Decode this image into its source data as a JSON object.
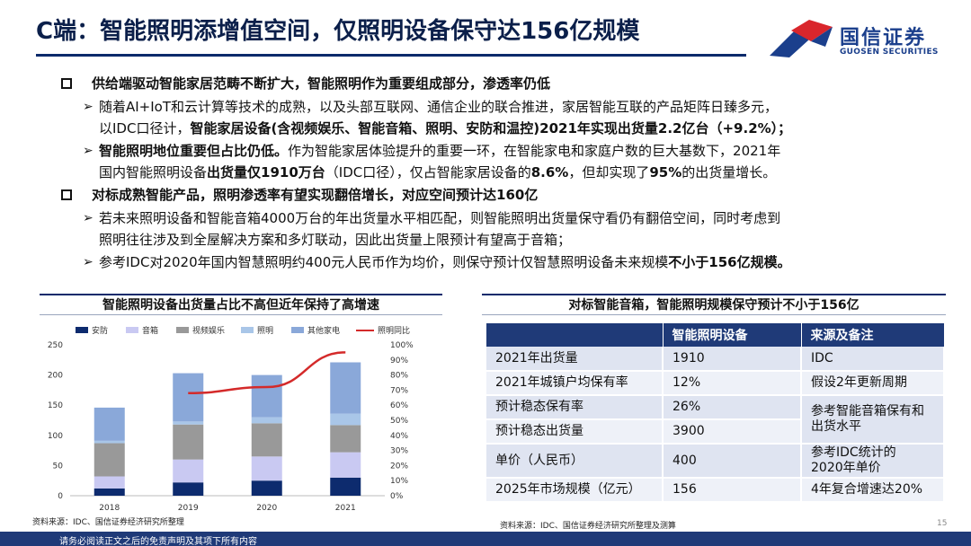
{
  "title": "C端：智能照明添增值空间，仅照明设备保守达156亿规模",
  "logo": {
    "cn": "国信证券",
    "en": "GUOSEN SECURITIES"
  },
  "sections": [
    {
      "heading": "供给端驱动智能家居范畴不断扩大，智能照明作为重要组成部分，渗透率仍低",
      "points": [
        {
          "line1": "随着AI+IoT和云计算等技术的成熟，以及头部互联网、通信企业的联合推进，家居智能互联的产品矩阵日臻多元，",
          "line2_a": "以IDC口径计，",
          "line2_b": "智能家居设备(含视频娱乐、智能音箱、照明、安防和温控)2021年实现出货量2.2亿台（+9.2%）；"
        },
        {
          "line1_b": "智能照明地位重要但占比仍低。",
          "line1_a": "作为智能家居体验提升的重要一环，在智能家电和家庭户数的巨大基数下，2021年",
          "line2_a": "国内智能照明设备",
          "line2_b": "出货量仅1910万台",
          "line2_c": "（IDC口径），仅占智能家居设备的",
          "line2_d": "8.6%",
          "line2_e": "，但却实现了",
          "line2_f": "95%",
          "line2_g": "的出货量增长。"
        }
      ]
    },
    {
      "heading": "对标成熟智能产品，照明渗透率有望实现翻倍增长，对应空间预计达160亿",
      "points": [
        {
          "line1": "若未来照明设备和智能音箱4000万台的年出货量水平相匹配，则智能照明出货量保守看仍有翻倍空间，同时考虑到",
          "line2": "照明往往涉及到全屋解决方案和多灯联动，因此出货量上限预计有望高于音箱；"
        },
        {
          "line1_a": "参考IDC对2020年国内智慧照明约400元人民币作为均价，则保守预计仅智慧照明设备未来规模",
          "line1_b": "不小于156亿规模。"
        }
      ]
    }
  ],
  "chart_title": "智能照明设备出货量占比不高但近年保持了高增速",
  "table_title": "对标智能音箱，智能照明规模保守预计不小于156亿",
  "chart_data": {
    "type": "bar",
    "stacked": true,
    "categories": [
      "2018",
      "2019",
      "2020",
      "2021"
    ],
    "series": [
      {
        "name": "安防",
        "color": "#0d2b6e",
        "values": [
          12,
          22,
          25,
          30
        ]
      },
      {
        "name": "音箱",
        "color": "#c9c9f2",
        "values": [
          20,
          38,
          40,
          42
        ]
      },
      {
        "name": "视频娱乐",
        "color": "#999999",
        "values": [
          55,
          58,
          55,
          45
        ]
      },
      {
        "name": "照明",
        "color": "#a9c6e8",
        "values": [
          4,
          5,
          10,
          19
        ]
      },
      {
        "name": "其他家电",
        "color": "#8aa8d9",
        "values": [
          55,
          80,
          70,
          85
        ]
      }
    ],
    "line_series": {
      "name": "照明同比",
      "color": "#d42a2a",
      "categories": [
        "2019",
        "2020",
        "2021"
      ],
      "values": [
        0.68,
        0.72,
        0.95
      ]
    },
    "ylim": [
      0,
      250
    ],
    "yticks": [
      "0",
      "50",
      "100",
      "150",
      "200",
      "250"
    ],
    "y2lim": [
      0,
      1
    ],
    "y2ticks": [
      "0%",
      "10%",
      "20%",
      "30%",
      "40%",
      "50%",
      "60%",
      "70%",
      "80%",
      "90%",
      "100%"
    ],
    "legend": "top",
    "grid": false
  },
  "table": {
    "headers": [
      "",
      "智能照明设备",
      "来源及备注"
    ],
    "rows": [
      {
        "label": "2021年出货量",
        "value": "1910",
        "note": "IDC"
      },
      {
        "label": "2021年城镇户均保有率",
        "value": "12%",
        "note": "假设2年更新周期"
      },
      {
        "label": "预计稳态保有率",
        "value": "26%",
        "note": "参考智能音箱保有和出货水平"
      },
      {
        "label": "预计稳态出货量",
        "value": "3900",
        "note": ""
      },
      {
        "label": "单价（人民币）",
        "value": "400",
        "note": "参考IDC统计的2020年单价"
      },
      {
        "label": "2025年市场规模（亿元）",
        "value": "156",
        "note": "4年复合增速达20%"
      }
    ]
  },
  "source_left": "资料来源：IDC、国信证券经济研究所整理",
  "source_right": "资料来源：IDC、国信证券经济研究所整理及测算",
  "page_number": "15",
  "footer": "请务必阅读正文之后的免责声明及其项下所有内容",
  "colors": {
    "navy": "#0b2a6b",
    "header_bg": "#1f3a78",
    "row_a": "#dfe4f1",
    "row_b": "#eef1f8",
    "logo_red": "#d9262c"
  }
}
